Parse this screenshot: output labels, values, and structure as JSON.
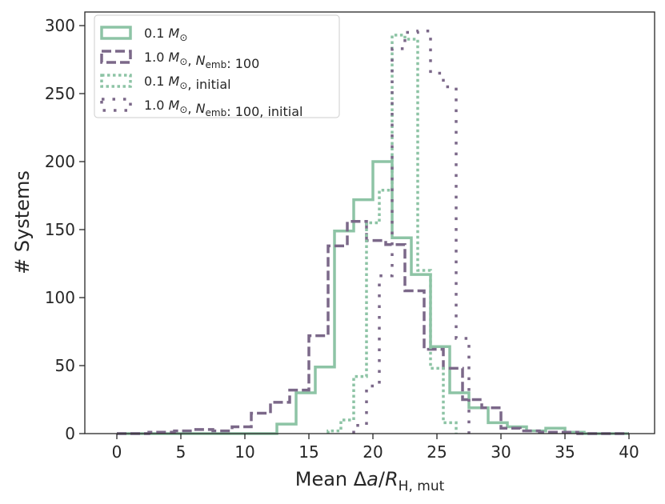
{
  "chart_data": {
    "type": "histogram",
    "xlabel": "Mean Δa/R_H,mut",
    "ylabel": "# Systems",
    "xlim": [
      -2.5,
      42.0
    ],
    "ylim": [
      0,
      310
    ],
    "x_ticks": [
      0,
      5,
      10,
      15,
      20,
      25,
      30,
      35,
      40
    ],
    "y_ticks": [
      0,
      50,
      100,
      150,
      200,
      250,
      300
    ],
    "grid": false,
    "legend_position": "top-left",
    "legend": [
      {
        "name": "0.1 M_⊙",
        "parts": [
          {
            "t": "0.1 "
          },
          {
            "t": "M",
            "italic": true
          },
          {
            "t": "⊙",
            "sub": true
          }
        ]
      },
      {
        "name": "1.0 M_⊙, N_emb: 100",
        "parts": [
          {
            "t": "1.0 "
          },
          {
            "t": "M",
            "italic": true
          },
          {
            "t": "⊙",
            "sub": true
          },
          {
            "t": ", "
          },
          {
            "t": "N",
            "italic": true
          },
          {
            "t": "emb",
            "sub": true
          },
          {
            "t": ": 100"
          }
        ]
      },
      {
        "name": "0.1 M_⊙, initial",
        "parts": [
          {
            "t": "0.1 "
          },
          {
            "t": "M",
            "italic": true
          },
          {
            "t": "⊙",
            "sub": true
          },
          {
            "t": ", initial"
          }
        ]
      },
      {
        "name": "1.0 M_⊙, N_emb: 100, initial",
        "parts": [
          {
            "t": "1.0 "
          },
          {
            "t": "M",
            "italic": true
          },
          {
            "t": "⊙",
            "sub": true
          },
          {
            "t": ", "
          },
          {
            "t": "N",
            "italic": true
          },
          {
            "t": "emb",
            "sub": true
          },
          {
            "t": ": 100, initial"
          }
        ]
      }
    ],
    "series": [
      {
        "name": "0.1 M_⊙",
        "color": "#8dc4a5",
        "style": "solid",
        "edges": [
          0,
          12.5,
          14,
          15.5,
          17,
          18.5,
          20,
          21.5,
          23,
          24.5,
          26,
          27.5,
          29,
          30.5,
          32,
          33.5,
          35,
          36.5,
          38,
          40
        ],
        "counts": [
          0,
          7,
          30,
          49,
          149,
          172,
          200,
          144,
          117,
          64,
          30,
          19,
          8,
          5,
          2,
          4,
          1,
          0,
          0
        ]
      },
      {
        "name": "1.0 M_⊙, N_emb: 100",
        "color": "#7b6889",
        "style": "dashed",
        "edges": [
          0,
          2.5,
          4.5,
          6,
          7.5,
          9,
          10.5,
          12,
          13.5,
          15,
          16.5,
          18,
          19.5,
          21,
          22.5,
          24,
          25.5,
          27,
          28.5,
          30,
          31.5,
          33,
          34.5,
          36,
          37.5,
          40
        ],
        "counts": [
          0,
          1,
          2,
          3,
          2,
          5,
          15,
          23,
          32,
          72,
          138,
          156,
          142,
          139,
          105,
          62,
          48,
          25,
          19,
          4,
          2,
          1,
          1,
          0,
          0
        ]
      },
      {
        "name": "0.1 M_⊙, initial",
        "color": "#8dc4a5",
        "style": "dotted",
        "edges": [
          16.5,
          17.5,
          18.5,
          19.5,
          20.5,
          21.5,
          22.5,
          23.5,
          24.5,
          25.5,
          26.5
        ],
        "counts": [
          2,
          10,
          42,
          155,
          179,
          293,
          290,
          120,
          48,
          8
        ]
      },
      {
        "name": "1.0 M_⊙, N_emb: 100, initial",
        "color": "#7b6889",
        "style": "dotted-sparse",
        "edges": [
          18.5,
          19.5,
          20.5,
          21.5,
          22.5,
          23.5,
          24.5,
          25.5,
          26.5,
          27.5
        ],
        "counts": [
          6,
          35,
          116,
          283,
          295,
          296,
          265,
          255,
          70
        ]
      }
    ]
  }
}
